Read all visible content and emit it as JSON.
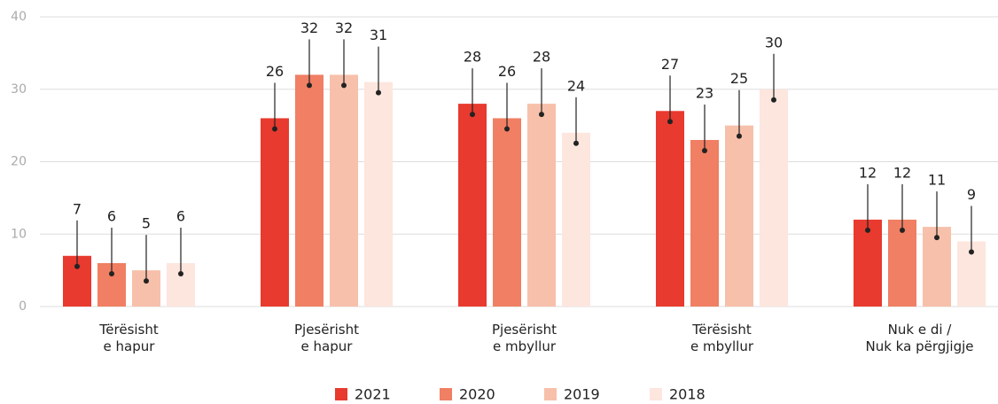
{
  "chart_data": {
    "type": "bar",
    "categories": [
      [
        "Tërësisht",
        "e hapur"
      ],
      [
        "Pjesërisht",
        "e hapur"
      ],
      [
        "Pjesërisht",
        "e mbyllur"
      ],
      [
        "Tërësisht",
        "e mbyllur"
      ],
      [
        "Nuk e di /",
        "Nuk ka përgjigje"
      ]
    ],
    "series": [
      {
        "name": "2021",
        "color": "#e83a2e",
        "values": [
          7,
          26,
          28,
          27,
          12
        ]
      },
      {
        "name": "2020",
        "color": "#f07f63",
        "values": [
          6,
          32,
          26,
          23,
          12
        ]
      },
      {
        "name": "2019",
        "color": "#f7c0aa",
        "values": [
          5,
          32,
          28,
          25,
          11
        ]
      },
      {
        "name": "2018",
        "color": "#fce6de",
        "values": [
          6,
          31,
          24,
          30,
          9
        ]
      }
    ],
    "ylim": [
      0,
      40
    ],
    "yticks": [
      0,
      10,
      20,
      30,
      40
    ],
    "grid": true,
    "legend": "bottom"
  }
}
